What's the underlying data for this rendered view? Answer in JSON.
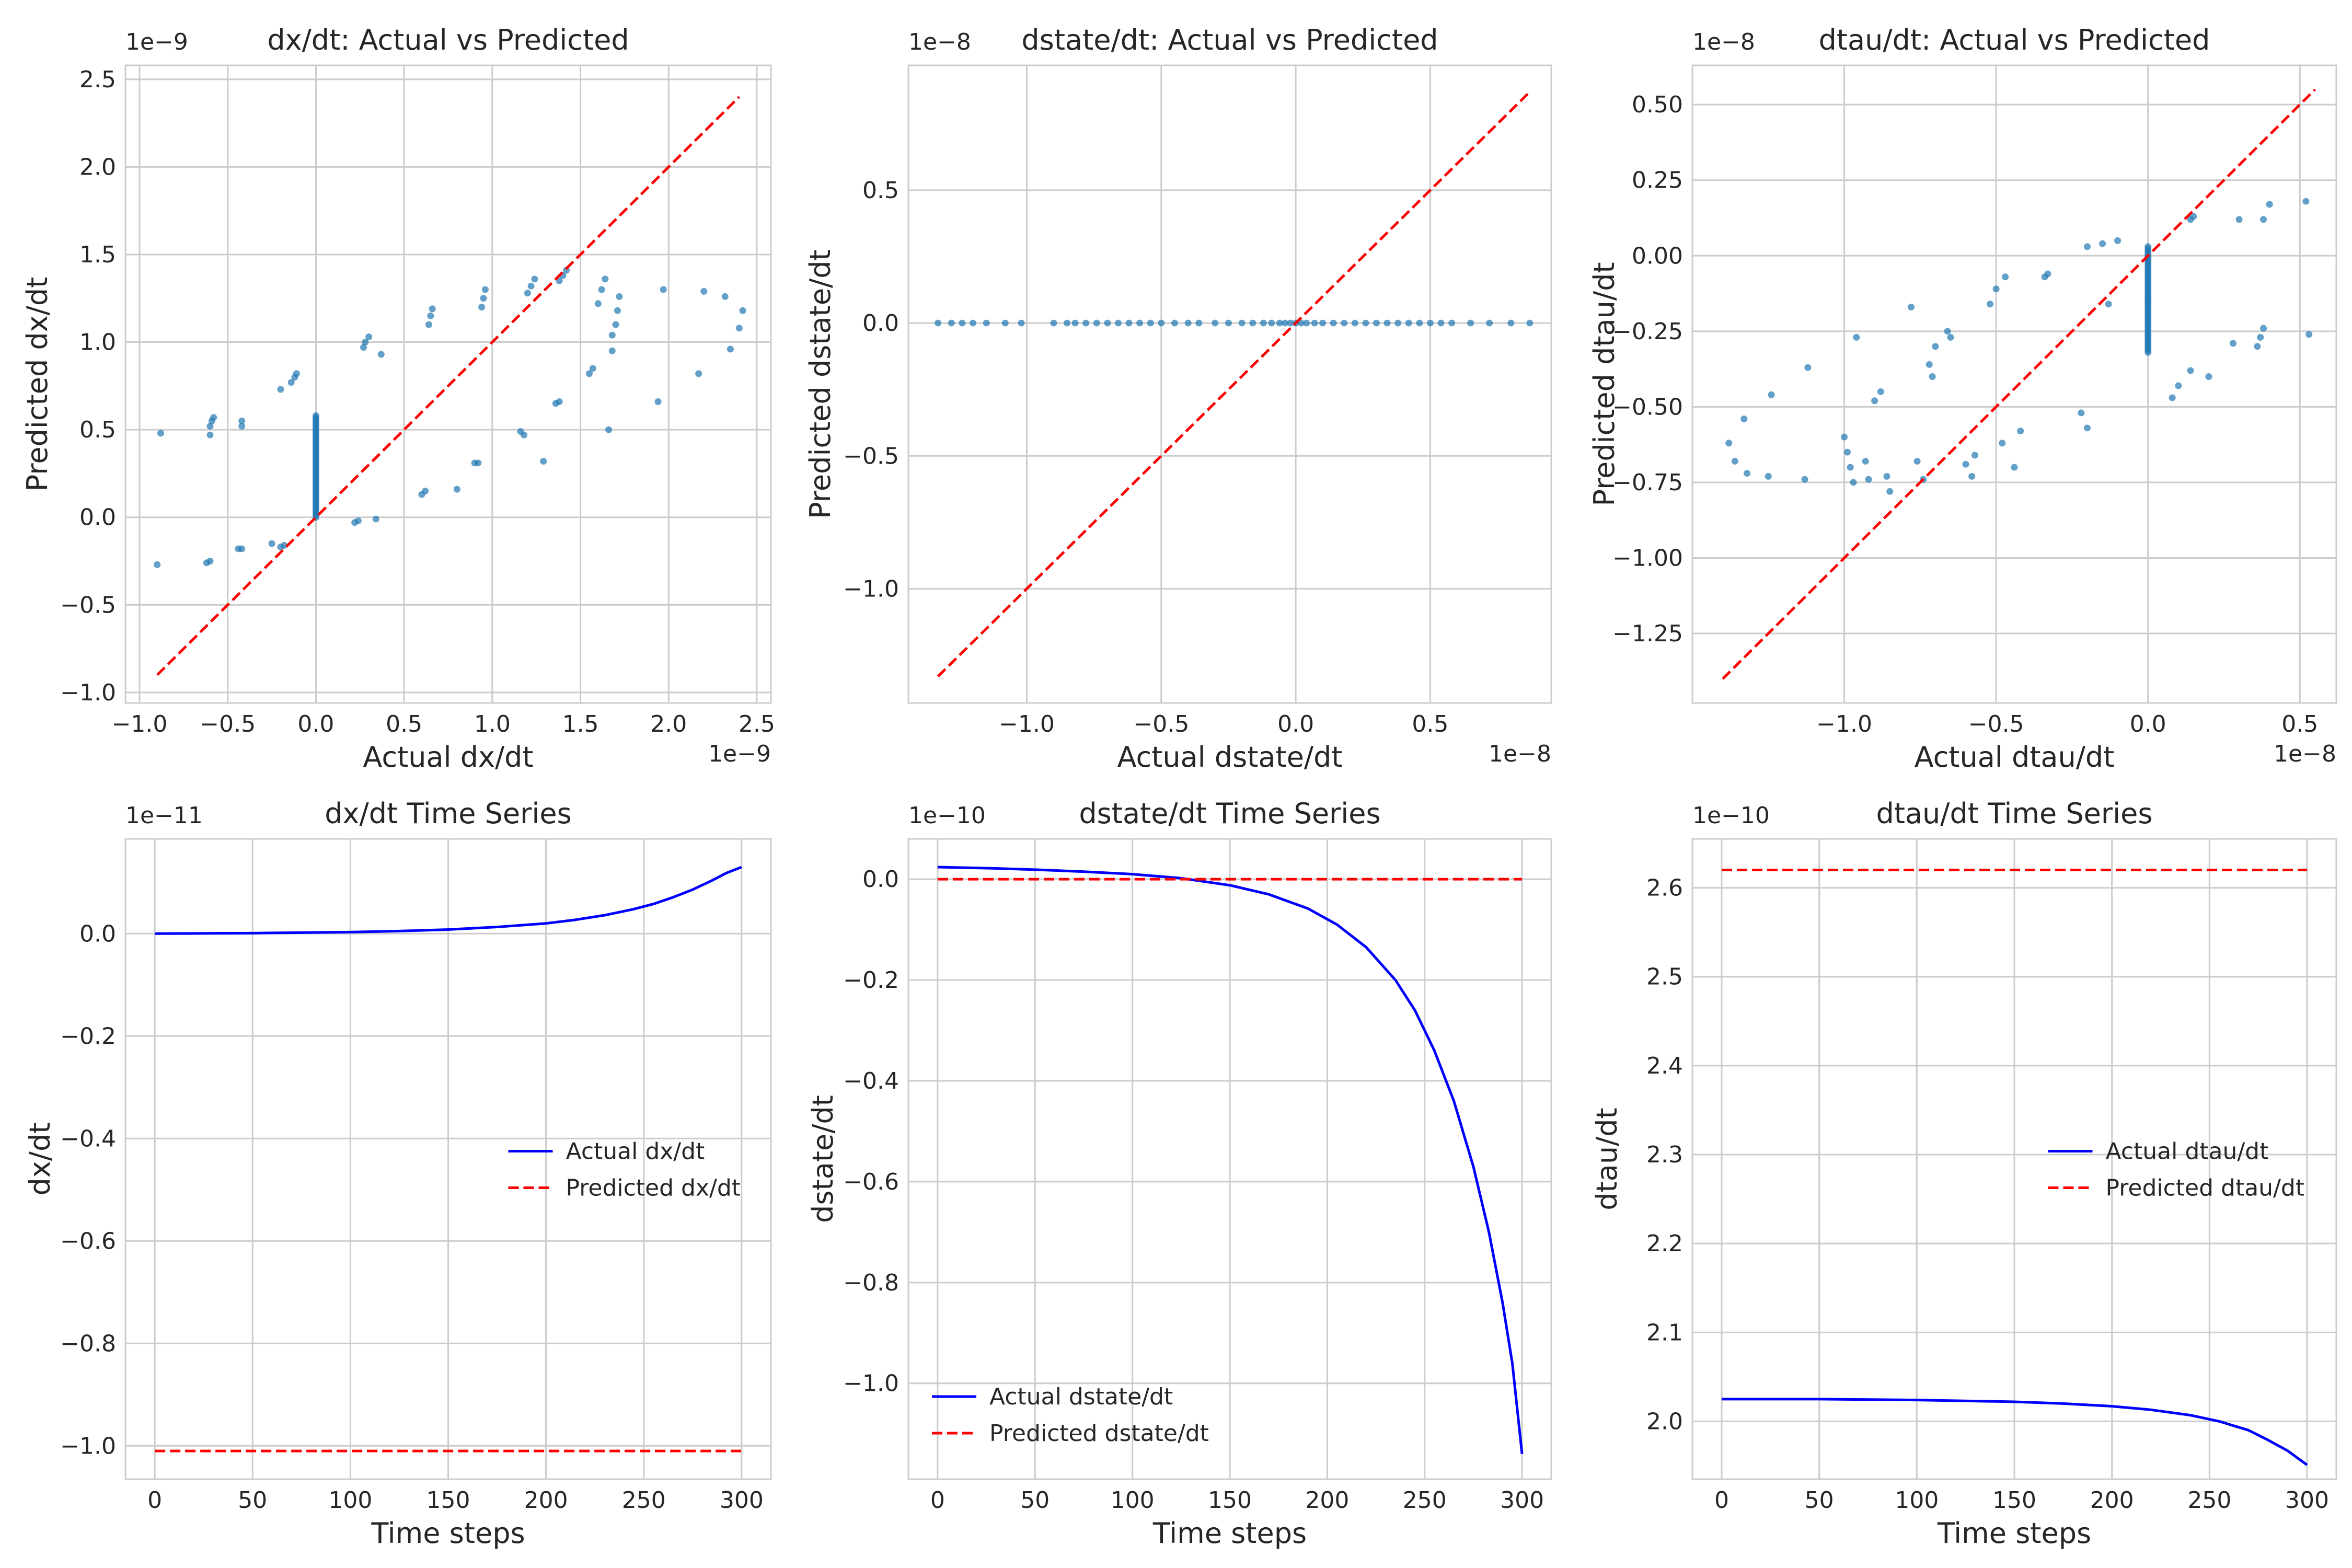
{
  "colors": {
    "scatter": "#1f77b4",
    "actual": "#0000ff",
    "predicted": "#ff0000",
    "grid": "#cccccc"
  },
  "chart_data": [
    {
      "type": "scatter",
      "title": "dx/dt: Actual vs Predicted",
      "xlabel": "Actual dx/dt",
      "ylabel": "Predicted dx/dt",
      "x_exponent": "1e−9",
      "y_exponent": "1e−9",
      "xlim": [
        -1.08,
        2.58
      ],
      "ylim": [
        -1.06,
        2.58
      ],
      "xticks": [
        -1.0,
        -0.5,
        0.0,
        0.5,
        1.0,
        1.5,
        2.0,
        2.5
      ],
      "xticklabels": [
        "−1.0",
        "−0.5",
        "0.0",
        "0.5",
        "1.0",
        "1.5",
        "2.0",
        "2.5"
      ],
      "yticks": [
        -1.0,
        -0.5,
        0.0,
        0.5,
        1.0,
        1.5,
        2.0,
        2.5
      ],
      "yticklabels": [
        "−1.0",
        "−0.5",
        "0.0",
        "0.5",
        "1.0",
        "1.5",
        "2.0",
        "2.5"
      ],
      "grid": true,
      "reference_line": [
        [
          -0.9,
          -0.9
        ],
        [
          2.4,
          2.4
        ]
      ],
      "points": [
        [
          -0.9,
          -0.27
        ],
        [
          -0.88,
          0.48
        ],
        [
          -0.62,
          -0.26
        ],
        [
          -0.6,
          -0.25
        ],
        [
          -0.6,
          0.47
        ],
        [
          -0.6,
          0.52
        ],
        [
          -0.59,
          0.55
        ],
        [
          -0.58,
          0.57
        ],
        [
          -0.44,
          -0.18
        ],
        [
          -0.42,
          -0.18
        ],
        [
          -0.42,
          0.52
        ],
        [
          -0.42,
          0.55
        ],
        [
          -0.25,
          -0.15
        ],
        [
          -0.2,
          -0.17
        ],
        [
          -0.18,
          -0.16
        ],
        [
          -0.2,
          0.73
        ],
        [
          -0.14,
          0.77
        ],
        [
          -0.12,
          0.8
        ],
        [
          -0.11,
          0.82
        ],
        [
          0.22,
          -0.03
        ],
        [
          0.24,
          -0.02
        ],
        [
          0.34,
          -0.01
        ],
        [
          0.27,
          0.97
        ],
        [
          0.28,
          1.0
        ],
        [
          0.3,
          1.03
        ],
        [
          0.37,
          0.93
        ],
        [
          0.6,
          0.13
        ],
        [
          0.62,
          0.15
        ],
        [
          0.64,
          1.1
        ],
        [
          0.65,
          1.15
        ],
        [
          0.66,
          1.19
        ],
        [
          0.8,
          0.16
        ],
        [
          0.9,
          0.31
        ],
        [
          0.92,
          0.31
        ],
        [
          0.94,
          1.2
        ],
        [
          0.95,
          1.25
        ],
        [
          0.96,
          1.3
        ],
        [
          1.16,
          0.49
        ],
        [
          1.18,
          0.47
        ],
        [
          1.2,
          1.28
        ],
        [
          1.22,
          1.32
        ],
        [
          1.24,
          1.36
        ],
        [
          1.29,
          0.32
        ],
        [
          1.36,
          0.65
        ],
        [
          1.38,
          0.66
        ],
        [
          1.38,
          1.35
        ],
        [
          1.4,
          1.38
        ],
        [
          1.42,
          1.41
        ],
        [
          1.55,
          0.82
        ],
        [
          1.57,
          0.85
        ],
        [
          1.6,
          1.22
        ],
        [
          1.62,
          1.3
        ],
        [
          1.64,
          1.36
        ],
        [
          1.66,
          0.5
        ],
        [
          1.68,
          0.95
        ],
        [
          1.68,
          1.04
        ],
        [
          1.7,
          1.1
        ],
        [
          1.71,
          1.18
        ],
        [
          1.72,
          1.26
        ],
        [
          1.94,
          0.66
        ],
        [
          1.97,
          1.3
        ],
        [
          2.17,
          0.82
        ],
        [
          2.2,
          1.29
        ],
        [
          2.32,
          1.26
        ],
        [
          2.35,
          0.96
        ],
        [
          2.4,
          1.08
        ],
        [
          2.42,
          1.18
        ]
      ],
      "vertical_clusters": [
        {
          "x": 0.0,
          "y_from": 0.0,
          "y_to": 0.58
        }
      ]
    },
    {
      "type": "scatter",
      "title": "dstate/dt: Actual vs Predicted",
      "xlabel": "Actual dstate/dt",
      "ylabel": "Predicted dstate/dt",
      "x_exponent": "1e−8",
      "y_exponent": "1e−8",
      "xlim": [
        -1.44,
        0.95
      ],
      "ylim": [
        -1.43,
        0.97
      ],
      "xticks": [
        -1.0,
        -0.5,
        0.0,
        0.5
      ],
      "xticklabels": [
        "−1.0",
        "−0.5",
        "0.0",
        "0.5"
      ],
      "yticks": [
        -1.0,
        -0.5,
        0.0,
        0.5
      ],
      "yticklabels": [
        "−1.0",
        "−0.5",
        "0.0",
        "0.5"
      ],
      "grid": true,
      "reference_line": [
        [
          -1.33,
          -1.33
        ],
        [
          0.87,
          0.87
        ]
      ],
      "points": [
        [
          -1.33,
          0.0
        ],
        [
          -1.28,
          0.0
        ],
        [
          -1.24,
          0.0
        ],
        [
          -1.2,
          0.0
        ],
        [
          -1.15,
          0.0
        ],
        [
          -1.08,
          0.0
        ],
        [
          -1.02,
          0.0
        ],
        [
          -0.9,
          0.0
        ],
        [
          -0.85,
          0.0
        ],
        [
          -0.82,
          0.0
        ],
        [
          -0.78,
          0.0
        ],
        [
          -0.74,
          0.0
        ],
        [
          -0.7,
          0.0
        ],
        [
          -0.66,
          0.0
        ],
        [
          -0.62,
          0.0
        ],
        [
          -0.58,
          0.0
        ],
        [
          -0.54,
          0.0
        ],
        [
          -0.5,
          0.0
        ],
        [
          -0.45,
          0.0
        ],
        [
          -0.4,
          0.0
        ],
        [
          -0.36,
          0.0
        ],
        [
          -0.3,
          0.0
        ],
        [
          -0.25,
          0.0
        ],
        [
          -0.2,
          0.0
        ],
        [
          -0.16,
          0.0
        ],
        [
          -0.12,
          0.0
        ],
        [
          -0.09,
          0.0
        ],
        [
          -0.06,
          0.0
        ],
        [
          -0.04,
          0.0
        ],
        [
          -0.02,
          0.0
        ],
        [
          0.0,
          0.0
        ],
        [
          0.02,
          0.0
        ],
        [
          0.04,
          0.0
        ],
        [
          0.07,
          0.0
        ],
        [
          0.1,
          0.0
        ],
        [
          0.14,
          0.0
        ],
        [
          0.18,
          0.0
        ],
        [
          0.22,
          0.0
        ],
        [
          0.26,
          0.0
        ],
        [
          0.3,
          0.0
        ],
        [
          0.34,
          0.0
        ],
        [
          0.38,
          0.0
        ],
        [
          0.42,
          0.0
        ],
        [
          0.46,
          0.0
        ],
        [
          0.5,
          0.0
        ],
        [
          0.54,
          0.0
        ],
        [
          0.58,
          0.0
        ],
        [
          0.65,
          0.0
        ],
        [
          0.72,
          0.0
        ],
        [
          0.8,
          0.0
        ],
        [
          0.87,
          0.0
        ]
      ],
      "vertical_clusters": []
    },
    {
      "type": "scatter",
      "title": "dtau/dt: Actual vs Predicted",
      "xlabel": "Actual dtau/dt",
      "ylabel": "Predicted dtau/dt",
      "x_exponent": "1e−8",
      "y_exponent": "1e−8",
      "xlim": [
        -1.5,
        0.62
      ],
      "ylim": [
        -1.48,
        0.63
      ],
      "xticks": [
        -1.0,
        -0.5,
        0.0,
        0.5
      ],
      "xticklabels": [
        "−1.0",
        "−0.5",
        "0.0",
        "0.5"
      ],
      "yticks": [
        -1.25,
        -1.0,
        -0.75,
        -0.5,
        -0.25,
        0.0,
        0.25,
        0.5
      ],
      "yticklabels": [
        "−1.25",
        "−1.00",
        "−0.75",
        "−0.50",
        "−0.25",
        "0.00",
        "0.25",
        "0.50"
      ],
      "grid": true,
      "reference_line": [
        [
          -1.4,
          -1.4
        ],
        [
          0.55,
          0.55
        ]
      ],
      "points": [
        [
          -1.38,
          -0.62
        ],
        [
          -1.36,
          -0.68
        ],
        [
          -1.33,
          -0.54
        ],
        [
          -1.32,
          -0.72
        ],
        [
          -1.25,
          -0.73
        ],
        [
          -1.24,
          -0.46
        ],
        [
          -1.12,
          -0.37
        ],
        [
          -1.13,
          -0.74
        ],
        [
          -1.0,
          -0.6
        ],
        [
          -0.99,
          -0.65
        ],
        [
          -0.98,
          -0.7
        ],
        [
          -0.97,
          -0.75
        ],
        [
          -0.96,
          -0.27
        ],
        [
          -0.93,
          -0.68
        ],
        [
          -0.92,
          -0.74
        ],
        [
          -0.9,
          -0.48
        ],
        [
          -0.88,
          -0.45
        ],
        [
          -0.86,
          -0.73
        ],
        [
          -0.85,
          -0.78
        ],
        [
          -0.78,
          -0.17
        ],
        [
          -0.76,
          -0.68
        ],
        [
          -0.74,
          -0.74
        ],
        [
          -0.72,
          -0.36
        ],
        [
          -0.71,
          -0.4
        ],
        [
          -0.7,
          -0.3
        ],
        [
          -0.66,
          -0.25
        ],
        [
          -0.65,
          -0.27
        ],
        [
          -0.6,
          -0.69
        ],
        [
          -0.58,
          -0.73
        ],
        [
          -0.57,
          -0.66
        ],
        [
          -0.52,
          -0.16
        ],
        [
          -0.5,
          -0.11
        ],
        [
          -0.48,
          -0.62
        ],
        [
          -0.47,
          -0.07
        ],
        [
          -0.44,
          -0.7
        ],
        [
          -0.42,
          -0.58
        ],
        [
          -0.34,
          -0.07
        ],
        [
          -0.33,
          -0.06
        ],
        [
          -0.22,
          -0.52
        ],
        [
          -0.2,
          -0.57
        ],
        [
          -0.2,
          0.03
        ],
        [
          -0.15,
          0.04
        ],
        [
          -0.13,
          -0.16
        ],
        [
          -0.1,
          0.05
        ],
        [
          0.08,
          -0.47
        ],
        [
          0.1,
          -0.43
        ],
        [
          0.14,
          0.12
        ],
        [
          0.15,
          0.13
        ],
        [
          0.14,
          -0.38
        ],
        [
          0.2,
          -0.4
        ],
        [
          0.28,
          -0.29
        ],
        [
          0.3,
          0.12
        ],
        [
          0.36,
          -0.3
        ],
        [
          0.37,
          -0.27
        ],
        [
          0.38,
          -0.24
        ],
        [
          0.4,
          0.17
        ],
        [
          0.38,
          0.12
        ],
        [
          0.52,
          0.18
        ],
        [
          0.53,
          -0.26
        ]
      ],
      "vertical_clusters": [
        {
          "x": 0.0,
          "y_from": -0.32,
          "y_to": 0.03
        }
      ]
    },
    {
      "type": "line",
      "title": "dx/dt Time Series",
      "xlabel": "Time steps",
      "ylabel": "dx/dt",
      "y_exponent": "1e−11",
      "xlim": [
        -15,
        315
      ],
      "ylim": [
        -1.065,
        0.185
      ],
      "xticks": [
        0,
        50,
        100,
        150,
        200,
        250,
        300
      ],
      "xticklabels": [
        "0",
        "50",
        "100",
        "150",
        "200",
        "250",
        "300"
      ],
      "yticks": [
        -1.0,
        -0.8,
        -0.6,
        -0.4,
        -0.2,
        0.0
      ],
      "yticklabels": [
        "−1.0",
        "−0.8",
        "−0.6",
        "−0.4",
        "−0.2",
        "0.0"
      ],
      "grid": true,
      "legend": {
        "placement": "center-right"
      },
      "series": [
        {
          "name": "Actual dx/dt",
          "style": "solid",
          "color": "#0000ff",
          "x": [
            0,
            25,
            50,
            75,
            100,
            125,
            150,
            175,
            200,
            215,
            230,
            245,
            255,
            265,
            275,
            285,
            292,
            300
          ],
          "y": [
            0.0,
            0.0005,
            0.001,
            0.002,
            0.003,
            0.005,
            0.008,
            0.013,
            0.02,
            0.027,
            0.036,
            0.048,
            0.058,
            0.071,
            0.086,
            0.104,
            0.118,
            0.13
          ]
        },
        {
          "name": "Predicted dx/dt",
          "style": "dashed",
          "color": "#ff0000",
          "x": [
            0,
            300
          ],
          "y": [
            -1.01,
            -1.01
          ]
        }
      ]
    },
    {
      "type": "line",
      "title": "dstate/dt Time Series",
      "xlabel": "Time steps",
      "ylabel": "dstate/dt",
      "y_exponent": "1e−10",
      "xlim": [
        -15,
        315
      ],
      "ylim": [
        -1.19,
        0.08
      ],
      "xticks": [
        0,
        50,
        100,
        150,
        200,
        250,
        300
      ],
      "xticklabels": [
        "0",
        "50",
        "100",
        "150",
        "200",
        "250",
        "300"
      ],
      "yticks": [
        -1.0,
        -0.8,
        -0.6,
        -0.4,
        -0.2,
        0.0
      ],
      "yticklabels": [
        "−1.0",
        "−0.8",
        "−0.6",
        "−0.4",
        "−0.2",
        "0.0"
      ],
      "grid": true,
      "legend": {
        "placement": "lower-left"
      },
      "series": [
        {
          "name": "Actual dstate/dt",
          "style": "solid",
          "color": "#0000ff",
          "x": [
            0,
            25,
            50,
            75,
            100,
            125,
            150,
            170,
            190,
            205,
            220,
            235,
            245,
            255,
            265,
            275,
            283,
            290,
            295,
            300
          ],
          "y": [
            0.024,
            0.022,
            0.019,
            0.015,
            0.01,
            0.002,
            -0.012,
            -0.03,
            -0.058,
            -0.09,
            -0.135,
            -0.2,
            -0.26,
            -0.34,
            -0.44,
            -0.57,
            -0.7,
            -0.84,
            -0.96,
            -1.14
          ]
        },
        {
          "name": "Predicted dstate/dt",
          "style": "dashed",
          "color": "#ff0000",
          "x": [
            0,
            300
          ],
          "y": [
            0.0,
            0.0
          ]
        }
      ]
    },
    {
      "type": "line",
      "title": "dtau/dt Time Series",
      "xlabel": "Time steps",
      "ylabel": "dtau/dt",
      "y_exponent": "1e−10",
      "xlim": [
        -15,
        315
      ],
      "ylim": [
        1.935,
        2.655
      ],
      "xticks": [
        0,
        50,
        100,
        150,
        200,
        250,
        300
      ],
      "xticklabels": [
        "0",
        "50",
        "100",
        "150",
        "200",
        "250",
        "300"
      ],
      "yticks": [
        2.0,
        2.1,
        2.2,
        2.3,
        2.4,
        2.5,
        2.6
      ],
      "yticklabels": [
        "2.0",
        "2.1",
        "2.2",
        "2.3",
        "2.4",
        "2.5",
        "2.6"
      ],
      "grid": true,
      "legend": {
        "placement": "center-right"
      },
      "series": [
        {
          "name": "Actual dtau/dt",
          "style": "solid",
          "color": "#0000ff",
          "x": [
            0,
            50,
            100,
            150,
            175,
            200,
            220,
            240,
            255,
            270,
            280,
            290,
            300
          ],
          "y": [
            2.025,
            2.025,
            2.024,
            2.022,
            2.02,
            2.017,
            2.013,
            2.007,
            2.0,
            1.99,
            1.979,
            1.967,
            1.951
          ]
        },
        {
          "name": "Predicted dtau/dt",
          "style": "dashed",
          "color": "#ff0000",
          "x": [
            0,
            300
          ],
          "y": [
            2.62,
            2.62
          ]
        }
      ]
    }
  ]
}
